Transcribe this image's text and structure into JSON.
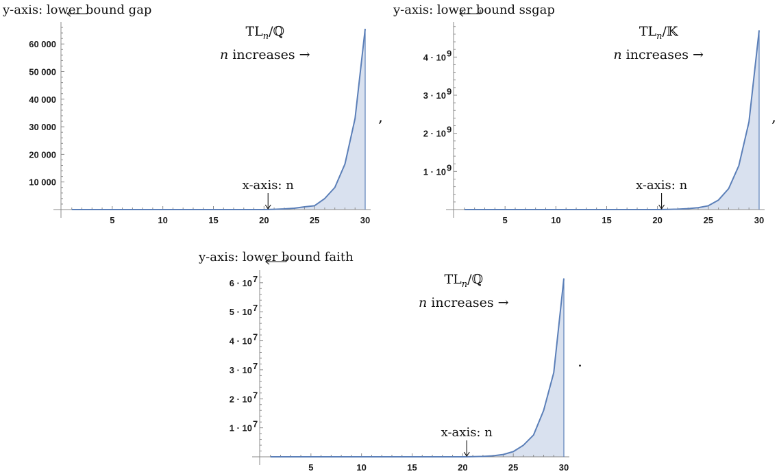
{
  "chart_data": [
    {
      "type": "area",
      "ylabel": "y-axis: lower bound gap",
      "xlabel": "x-axis: n",
      "title": "TL",
      "title_sub": "n",
      "title_field": "/ℚ",
      "note_var": "n",
      "note_text": " increases →",
      "left_arrow": "←⏌",
      "down_arrow": "↓",
      "x": [
        1,
        2,
        3,
        4,
        5,
        6,
        7,
        8,
        9,
        10,
        11,
        12,
        13,
        14,
        15,
        16,
        17,
        18,
        19,
        20,
        21,
        22,
        23,
        24,
        25,
        26,
        27,
        28,
        29,
        30
      ],
      "values": [
        0,
        0,
        0,
        0,
        0,
        0,
        0,
        0,
        0,
        0,
        0,
        0,
        0,
        0,
        0,
        0,
        0,
        0,
        0,
        0,
        100,
        250,
        500,
        1000,
        1400,
        4000,
        8000,
        16500,
        33000,
        65500
      ],
      "xlim": [
        0,
        30
      ],
      "ylim": [
        0,
        67000
      ],
      "xticks": [
        5,
        10,
        15,
        20,
        25,
        30
      ],
      "xtick_labels": [
        "5",
        "10",
        "15",
        "20",
        "25",
        "30"
      ],
      "yticks": [
        10000,
        20000,
        30000,
        40000,
        50000,
        60000
      ],
      "ytick_labels": [
        "10 000",
        "20 000",
        "30 000",
        "40 000",
        "50 000",
        "60 000"
      ],
      "ytick_exp": [
        "",
        "",
        "",
        "",
        "",
        ""
      ],
      "x_marker": 20.4,
      "trailing_punct": ","
    },
    {
      "type": "area",
      "ylabel": "y-axis: lower bound ssgap",
      "xlabel": "x-axis: n",
      "title": "TL",
      "title_sub": "n",
      "title_field": "/𝕂",
      "note_var": "n",
      "note_text": " increases →",
      "left_arrow": "←⏌",
      "down_arrow": "↓",
      "x": [
        1,
        2,
        3,
        4,
        5,
        6,
        7,
        8,
        9,
        10,
        11,
        12,
        13,
        14,
        15,
        16,
        17,
        18,
        19,
        20,
        21,
        22,
        23,
        24,
        25,
        26,
        27,
        28,
        29,
        30
      ],
      "values": [
        0,
        0,
        0,
        0,
        0,
        0,
        0,
        0,
        0,
        0,
        0,
        0,
        0,
        0,
        0,
        0,
        0,
        0,
        0,
        0,
        0.005,
        0.012,
        0.025,
        0.05,
        0.1,
        0.25,
        0.55,
        1.15,
        2.3,
        4.7
      ],
      "xlim": [
        0,
        30
      ],
      "ylim": [
        0,
        4.85
      ],
      "xticks": [
        5,
        10,
        15,
        20,
        25,
        30
      ],
      "xtick_labels": [
        "5",
        "10",
        "15",
        "20",
        "25",
        "30"
      ],
      "yticks": [
        1,
        2,
        3,
        4
      ],
      "ytick_labels": [
        "1 · 10",
        "2 · 10",
        "3 · 10",
        "4 · 10"
      ],
      "ytick_exp": [
        "9",
        "9",
        "9",
        "9"
      ],
      "x_marker": 20.4,
      "trailing_punct": ","
    },
    {
      "type": "area",
      "ylabel": "y-axis: lower bound faith",
      "xlabel": "x-axis: n",
      "title": "TL",
      "title_sub": "n",
      "title_field": "/ℚ",
      "note_var": "n",
      "note_text": " increases →",
      "left_arrow": "←⏌",
      "down_arrow": "↓",
      "x": [
        1,
        2,
        3,
        4,
        5,
        6,
        7,
        8,
        9,
        10,
        11,
        12,
        13,
        14,
        15,
        16,
        17,
        18,
        19,
        20,
        21,
        22,
        23,
        24,
        25,
        26,
        27,
        28,
        29,
        30
      ],
      "values": [
        0,
        0,
        0,
        0,
        0,
        0,
        0,
        0,
        0,
        0,
        0,
        0,
        0,
        0,
        0,
        0,
        0,
        0,
        0,
        0,
        0.05,
        0.15,
        0.35,
        0.8,
        1.8,
        4.0,
        7.5,
        16.0,
        29.0,
        61.5
      ],
      "xlim": [
        0,
        30
      ],
      "ylim": [
        0,
        63.5
      ],
      "xticks": [
        5,
        10,
        15,
        20,
        25,
        30
      ],
      "xtick_labels": [
        "5",
        "10",
        "15",
        "20",
        "25",
        "30"
      ],
      "yticks": [
        10,
        20,
        30,
        40,
        50,
        60
      ],
      "ytick_labels": [
        "1 · 10",
        "2 · 10",
        "3 · 10",
        "4 · 10",
        "5 · 10",
        "6 · 10"
      ],
      "ytick_exp": [
        "7",
        "7",
        "7",
        "7",
        "7",
        "7"
      ],
      "x_marker": 20.4,
      "trailing_punct": "."
    }
  ]
}
